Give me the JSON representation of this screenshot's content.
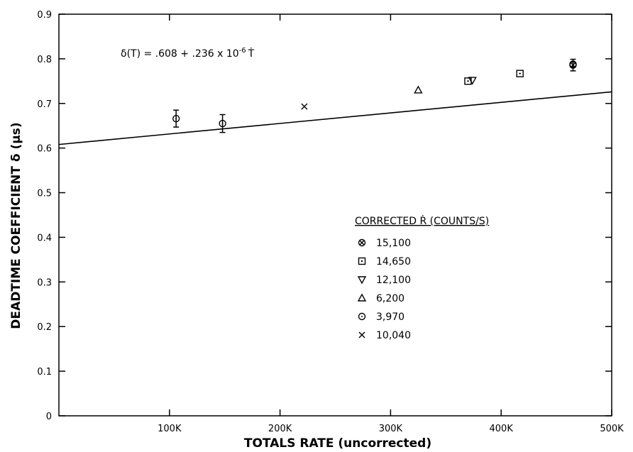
{
  "chart_data": {
    "type": "scatter",
    "xlabel": "TOTALS RATE (uncorrected)",
    "ylabel": "DEADTIME COEFFICIENT δ (μs)",
    "xlim": [
      0,
      500000
    ],
    "ylim": [
      0,
      0.9
    ],
    "x_ticks": [
      {
        "value": 100000,
        "label": "100K"
      },
      {
        "value": 200000,
        "label": "200K"
      },
      {
        "value": 300000,
        "label": "300K"
      },
      {
        "value": 400000,
        "label": "400K"
      },
      {
        "value": 500000,
        "label": "500K"
      }
    ],
    "y_ticks": [
      {
        "value": 0,
        "label": "0"
      },
      {
        "value": 0.1,
        "label": "0.1"
      },
      {
        "value": 0.2,
        "label": "0.2"
      },
      {
        "value": 0.3,
        "label": "0.3"
      },
      {
        "value": 0.4,
        "label": "0.4"
      },
      {
        "value": 0.5,
        "label": "0.5"
      },
      {
        "value": 0.6,
        "label": "0.6"
      },
      {
        "value": 0.7,
        "label": "0.7"
      },
      {
        "value": 0.8,
        "label": "0.8"
      },
      {
        "value": 0.9,
        "label": "0.9"
      }
    ],
    "grid": false,
    "fit_line": {
      "intercept": 0.608,
      "slope": 2.36e-07
    },
    "equation": {
      "lhs": "δ(T) = .608 + .236 x 10",
      "exponent": "-6",
      "var": "Ṫ"
    },
    "legend": {
      "title": "CORRECTED Ṙ (COUNTS/S)",
      "placement": "right-center",
      "entries": [
        {
          "marker": "circle-x",
          "label": "15,100"
        },
        {
          "marker": "square-dot",
          "label": "14,650"
        },
        {
          "marker": "triangle-down",
          "label": "12,100"
        },
        {
          "marker": "triangle-up",
          "label": "6,200"
        },
        {
          "marker": "circle",
          "label": "3,970"
        },
        {
          "marker": "x",
          "label": "10,040"
        }
      ]
    },
    "series": [
      {
        "marker": "circle-x",
        "points": [
          {
            "x": 465000,
            "y": 0.786,
            "err": 0.013
          }
        ]
      },
      {
        "marker": "square-dot",
        "points": [
          {
            "x": 370000,
            "y": 0.75
          },
          {
            "x": 417000,
            "y": 0.767
          }
        ]
      },
      {
        "marker": "triangle-down",
        "points": [
          {
            "x": 374000,
            "y": 0.752
          }
        ]
      },
      {
        "marker": "triangle-up",
        "points": [
          {
            "x": 325000,
            "y": 0.73
          }
        ]
      },
      {
        "marker": "circle",
        "points": [
          {
            "x": 106000,
            "y": 0.666,
            "err": 0.019
          },
          {
            "x": 148000,
            "y": 0.655,
            "err": 0.02
          },
          {
            "x": 465000,
            "y": 0.788
          }
        ]
      },
      {
        "marker": "x",
        "points": [
          {
            "x": 222000,
            "y": 0.693
          }
        ]
      }
    ]
  }
}
